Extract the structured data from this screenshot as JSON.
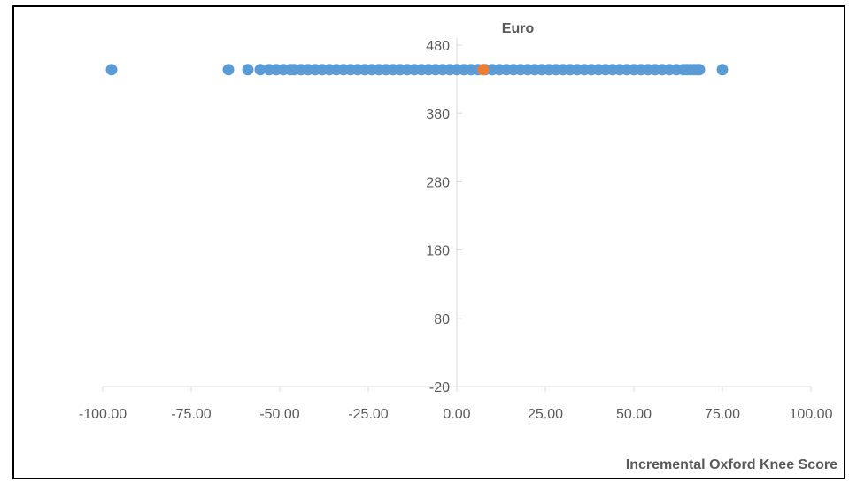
{
  "chart_data": {
    "type": "scatter",
    "ylabel": "Euro",
    "xlabel": "Incremental Oxford Knee Score",
    "xlim": [
      -100,
      100
    ],
    "ylim": [
      -20,
      480
    ],
    "x_ticks": [
      -100,
      -75,
      -50,
      -25,
      0,
      25,
      50,
      75,
      100
    ],
    "x_tick_labels": [
      "-100.00",
      "-75.00",
      "-50.00",
      "-25.00",
      "0.00",
      "25.00",
      "50.00",
      "75.00",
      "100.00"
    ],
    "y_ticks": [
      -20,
      80,
      180,
      280,
      380,
      480
    ],
    "y_tick_labels": [
      "-20",
      "80",
      "180",
      "280",
      "380",
      "480"
    ],
    "grid": false,
    "legend": "none",
    "series": [
      {
        "color": "#5B9BD5",
        "points": [
          [
            -97.5,
            444
          ],
          [
            -64.5,
            444
          ],
          [
            -59,
            444
          ],
          [
            -55.5,
            444
          ],
          [
            -53,
            444
          ],
          [
            -51,
            444
          ],
          [
            -49,
            444
          ],
          [
            -47,
            444
          ],
          [
            -46,
            444
          ],
          [
            -44,
            444
          ],
          [
            -42,
            444
          ],
          [
            -40,
            444
          ],
          [
            -38,
            444
          ],
          [
            -36,
            444
          ],
          [
            -34,
            444
          ],
          [
            -32,
            444
          ],
          [
            -30,
            444
          ],
          [
            -28,
            444
          ],
          [
            -26,
            444
          ],
          [
            -24,
            444
          ],
          [
            -22,
            444
          ],
          [
            -20,
            444
          ],
          [
            -18,
            444
          ],
          [
            -16,
            444
          ],
          [
            -14,
            444
          ],
          [
            -12,
            444
          ],
          [
            -10,
            444
          ],
          [
            -8,
            444
          ],
          [
            -6,
            444
          ],
          [
            -4,
            444
          ],
          [
            -2,
            444
          ],
          [
            0,
            444
          ],
          [
            2,
            444
          ],
          [
            4,
            444
          ],
          [
            6,
            444
          ],
          [
            8,
            444
          ],
          [
            10,
            444
          ],
          [
            12,
            444
          ],
          [
            14,
            444
          ],
          [
            16,
            444
          ],
          [
            18,
            444
          ],
          [
            20,
            444
          ],
          [
            22,
            444
          ],
          [
            24,
            444
          ],
          [
            26,
            444
          ],
          [
            28,
            444
          ],
          [
            30,
            444
          ],
          [
            32,
            444
          ],
          [
            34,
            444
          ],
          [
            36,
            444
          ],
          [
            38,
            444
          ],
          [
            40,
            444
          ],
          [
            42,
            444
          ],
          [
            44,
            444
          ],
          [
            46,
            444
          ],
          [
            48,
            444
          ],
          [
            50,
            444
          ],
          [
            52,
            444
          ],
          [
            54,
            444
          ],
          [
            56,
            444
          ],
          [
            58,
            444
          ],
          [
            60,
            444
          ],
          [
            62,
            444
          ],
          [
            64,
            444
          ],
          [
            65,
            444
          ],
          [
            66,
            444
          ],
          [
            67,
            444
          ],
          [
            68,
            444
          ],
          [
            68.5,
            444
          ],
          [
            75,
            444
          ]
        ]
      },
      {
        "color": "#ED7D31",
        "points": [
          [
            7.5,
            444
          ]
        ]
      }
    ]
  }
}
